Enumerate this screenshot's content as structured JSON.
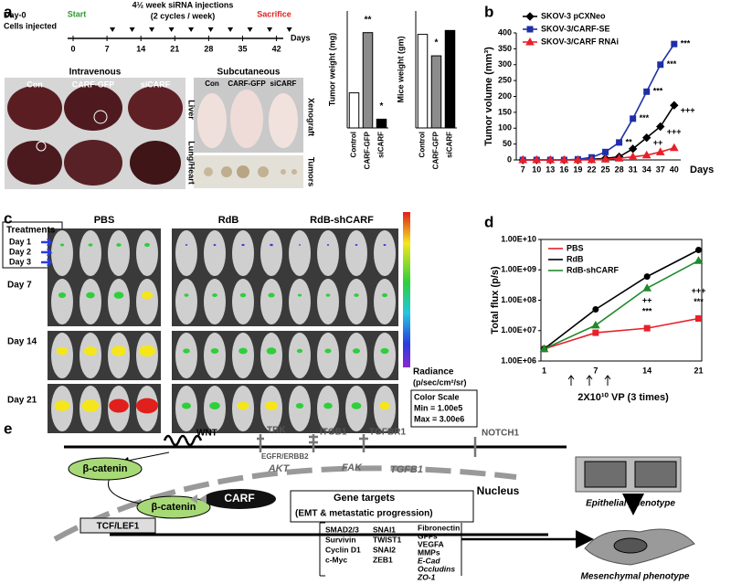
{
  "panel_labels": [
    "a",
    "b",
    "c",
    "d",
    "e"
  ],
  "panel_a": {
    "day0": "Day-0",
    "cells": "Cells injected",
    "start": "Start",
    "injections": "4½ week siRNA injections",
    "cycles": "(2 cycles / week)",
    "sacrifice": "Sacrifice",
    "days": [
      0,
      7,
      14,
      21,
      28,
      35,
      42
    ],
    "days_unit": "Days",
    "routes": [
      "Intravenous",
      "Subcutaneous"
    ],
    "groups_iv": [
      "Con",
      "CARF-GFP",
      "siCARF"
    ],
    "groups_sc": [
      "Con",
      "CARF-GFP",
      "siCARF"
    ],
    "organs": [
      "Liver",
      "Lung/Heart"
    ],
    "sc_labels": [
      "Xenograft",
      "Tumors"
    ]
  },
  "chart_data": [
    {
      "type": "bar",
      "y_label": "Tumor weight (mg)",
      "categories": [
        "Control",
        "CARF-GFP",
        "siCARF"
      ],
      "values": [
        60,
        163,
        15
      ],
      "colors": [
        "#ffffff",
        "#8c8c8c",
        "#000000"
      ],
      "significance": [
        null,
        "**",
        "*"
      ],
      "ylim": [
        0,
        200
      ]
    },
    {
      "type": "bar",
      "y_label": "Mice weight (gm)",
      "categories": [
        "Control",
        "CARF-GFP",
        "siCARF"
      ],
      "values": [
        24,
        18.5,
        25
      ],
      "colors": [
        "#ffffff",
        "#8c8c8c",
        "#000000"
      ],
      "significance": [
        null,
        "*",
        null
      ],
      "ylim": [
        0,
        30
      ]
    },
    {
      "type": "line",
      "y_label": "Tumor volume (mm³)",
      "x_label": "Days",
      "categories": [
        "7",
        "10",
        "13",
        "16",
        "19",
        "22",
        "25",
        "28",
        "31",
        "34",
        "37",
        "40"
      ],
      "ylim": [
        0,
        400
      ],
      "yticks": [
        0,
        50,
        100,
        150,
        200,
        250,
        300,
        350,
        400
      ],
      "series": [
        {
          "name": "SKOV-3 pCXNeo",
          "color": "#000000",
          "marker": "diamond",
          "values": [
            0,
            0,
            0,
            0,
            0,
            2,
            5,
            10,
            35,
            70,
            105,
            172
          ],
          "significance": [
            null,
            null,
            null,
            null,
            null,
            null,
            null,
            null,
            null,
            "++",
            "+++",
            "+++"
          ]
        },
        {
          "name": "SKOV-3/CARF-SE",
          "color": "#1f2fa8",
          "marker": "square",
          "values": [
            0,
            0,
            0,
            0,
            2,
            8,
            25,
            55,
            130,
            215,
            300,
            365
          ],
          "significance": [
            null,
            null,
            null,
            null,
            null,
            null,
            null,
            "**",
            "***",
            "***",
            "***",
            "***"
          ]
        },
        {
          "name": "SKOV-3/CARF RNAi",
          "color": "#e8202a",
          "marker": "triangle",
          "values": [
            0,
            0,
            0,
            0,
            0,
            0,
            2,
            5,
            10,
            15,
            25,
            38
          ],
          "significance": [
            null,
            null,
            null,
            null,
            null,
            null,
            null,
            null,
            null,
            null,
            null,
            null
          ]
        }
      ]
    },
    {
      "type": "line",
      "log_scale": true,
      "y_label": "Total flux (p/s)",
      "x_label": "2X10¹⁰ VP (3 times)",
      "categories": [
        "1",
        "7",
        "14",
        "21"
      ],
      "ylim": [
        1000000,
        10000000000
      ],
      "yticks": [
        {
          "value": 1000000,
          "label": "1.00E+06"
        },
        {
          "value": 10000000,
          "label": "1.00E+07"
        },
        {
          "value": 100000000,
          "label": "1.00E+08"
        },
        {
          "value": 1000000000,
          "label": "1.00E+09"
        },
        {
          "value": 10000000000,
          "label": "1.00E+10"
        }
      ],
      "series": [
        {
          "name": "PBS",
          "color": "#e8202a",
          "marker": "square",
          "values": [
            2500000,
            8500000,
            12000000,
            25000000
          ],
          "significance": [
            null,
            null,
            "***",
            "***"
          ]
        },
        {
          "name": "RdB",
          "color": "#000000",
          "marker": "circle",
          "values": [
            2500000,
            50000000,
            600000000,
            4500000000
          ],
          "significance": [
            null,
            null,
            null,
            null
          ]
        },
        {
          "name": "RdB-shCARF",
          "color": "#1f8a2a",
          "marker": "triangle",
          "values": [
            2500000,
            15000000,
            250000000,
            2000000000
          ],
          "significance": [
            null,
            null,
            "++",
            "+++"
          ]
        }
      ]
    }
  ],
  "panel_c": {
    "groups": [
      "PBS",
      "RdB",
      "RdB-shCARF"
    ],
    "treatments": "Treatments",
    "treat_days": [
      "Day 1",
      "Day 2",
      "Day 3"
    ],
    "rows": [
      "Day 7",
      "Day 14",
      "Day 21"
    ],
    "radiance": "Radiance",
    "radiance_unit": "(p/sec/cm²/sr)",
    "scale_title": "Color Scale",
    "scale_min": "Min = 1.00e5",
    "scale_max": "Max = 3.00e6"
  },
  "panel_e": {
    "wnt": "WNT",
    "trk": "TRK",
    "egfr": "EGFR/ERBB2",
    "itgb1": "ITGB1",
    "tgfbr1": "TGFBR1",
    "notch1": "NOTCH1",
    "akt": "AKT",
    "fak": "FAK",
    "tgfb1": "TGFB1",
    "bcat1": "β-catenin",
    "bcat2": "β-catenin",
    "carf": "CARF",
    "tcf": "TCF/LEF1",
    "nucleus": "Nucleus",
    "targets": "Gene targets",
    "targets_sub": "(EMT & metastatic progression)",
    "genes_1": [
      "SMAD2/3",
      "Survivin",
      "Cyclin D1",
      "c-Myc"
    ],
    "genes_2": [
      "SNAI1",
      "TWIST1",
      "SNAI2",
      "ZEB1"
    ],
    "genes_3": [
      "Fibronectin",
      "GFFs",
      "VEGFA",
      "MMPs",
      "E-Cad",
      "Occludins",
      "ZO-1"
    ],
    "epithelial": "Epithelial phenotype",
    "mesenchymal": "Mesenchymal phenotype"
  }
}
